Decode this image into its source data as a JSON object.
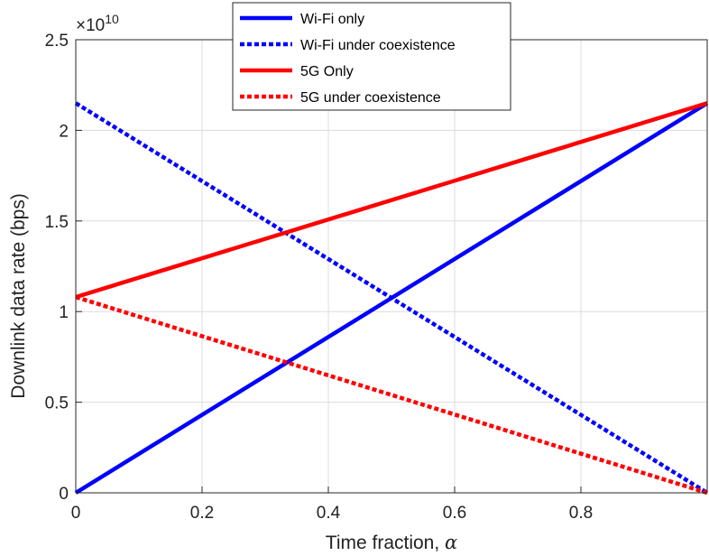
{
  "chart_data": {
    "type": "line",
    "xlabel": "Time fraction, ",
    "xlabel_symbol": "α",
    "ylabel": "Downlink data rate (bps)",
    "y_multiplier": "×10",
    "y_multiplier_exp": "10",
    "xlim": [
      0,
      1
    ],
    "ylim": [
      0,
      2.5
    ],
    "y_scale": 10000000000.0,
    "grid": true,
    "legend_position": "top-center",
    "x_ticks": [
      0,
      0.2,
      0.4,
      0.6,
      0.8
    ],
    "x_tick_labels": [
      "0",
      "0.2",
      "0.4",
      "0.6",
      "0.8"
    ],
    "y_ticks": [
      0,
      0.5,
      1,
      1.5,
      2,
      2.5
    ],
    "y_tick_labels": [
      "0",
      "0.5",
      "1",
      "1.5",
      "2",
      "2.5"
    ],
    "series": [
      {
        "name": "Wi-Fi only",
        "color": "#0000ff",
        "style": "solid",
        "x": [
          0,
          1
        ],
        "y": [
          0,
          2.15
        ]
      },
      {
        "name": "Wi-Fi under coexistence",
        "color": "#0000ff",
        "style": "dotted",
        "x": [
          0,
          1
        ],
        "y": [
          2.15,
          0
        ]
      },
      {
        "name": "5G Only",
        "color": "#ff0000",
        "style": "solid",
        "x": [
          0,
          1
        ],
        "y": [
          1.08,
          2.15
        ]
      },
      {
        "name": "5G under coexistence",
        "color": "#ff0000",
        "style": "dotted",
        "x": [
          0,
          1
        ],
        "y": [
          1.08,
          0
        ]
      }
    ]
  }
}
